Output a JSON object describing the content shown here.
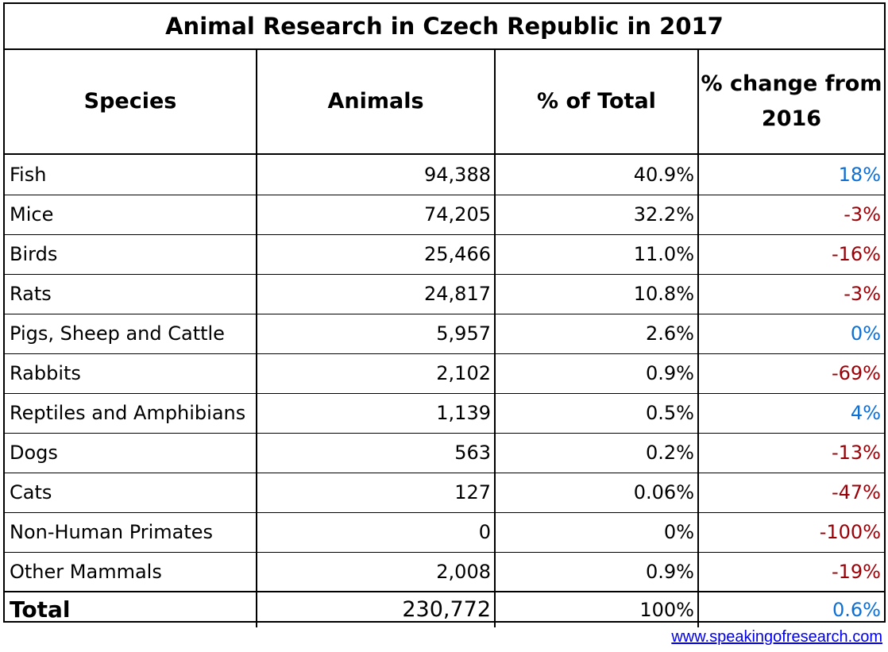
{
  "chart_data": {
    "type": "table",
    "title": "Animal Research in Czech Republic in 2017",
    "columns": [
      "Species",
      "Animals",
      "% of Total",
      "% change from 2016"
    ],
    "rows": [
      {
        "species": "Fish",
        "animals": "94,388",
        "pct_total": "40.9%",
        "pct_change": "18%",
        "change_value": 18
      },
      {
        "species": "Mice",
        "animals": "74,205",
        "pct_total": "32.2%",
        "pct_change": "-3%",
        "change_value": -3
      },
      {
        "species": "Birds",
        "animals": "25,466",
        "pct_total": "11.0%",
        "pct_change": "-16%",
        "change_value": -16
      },
      {
        "species": "Rats",
        "animals": "24,817",
        "pct_total": "10.8%",
        "pct_change": "-3%",
        "change_value": -3
      },
      {
        "species": "Pigs, Sheep and Cattle",
        "animals": "5,957",
        "pct_total": "2.6%",
        "pct_change": "0%",
        "change_value": 0
      },
      {
        "species": "Rabbits",
        "animals": "2,102",
        "pct_total": "0.9%",
        "pct_change": "-69%",
        "change_value": -69
      },
      {
        "species": "Reptiles and Amphibians",
        "animals": "1,139",
        "pct_total": "0.5%",
        "pct_change": "4%",
        "change_value": 4
      },
      {
        "species": "Dogs",
        "animals": "563",
        "pct_total": "0.2%",
        "pct_change": "-13%",
        "change_value": -13
      },
      {
        "species": "Cats",
        "animals": "127",
        "pct_total": "0.06%",
        "pct_change": "-47%",
        "change_value": -47
      },
      {
        "species": "Non-Human Primates",
        "animals": "0",
        "pct_total": "0%",
        "pct_change": "-100%",
        "change_value": -100
      },
      {
        "species": "Other Mammals",
        "animals": "2,008",
        "pct_total": "0.9%",
        "pct_change": "-19%",
        "change_value": -19
      }
    ],
    "total": {
      "species": "Total",
      "animals": "230,772",
      "pct_total": "100%",
      "pct_change": "0.6%",
      "change_value": 0.6
    },
    "colors": {
      "positive": "#0b6fd6",
      "negative": "#9c0006"
    }
  },
  "footer": {
    "link": "www.speakingofresearch.com"
  }
}
